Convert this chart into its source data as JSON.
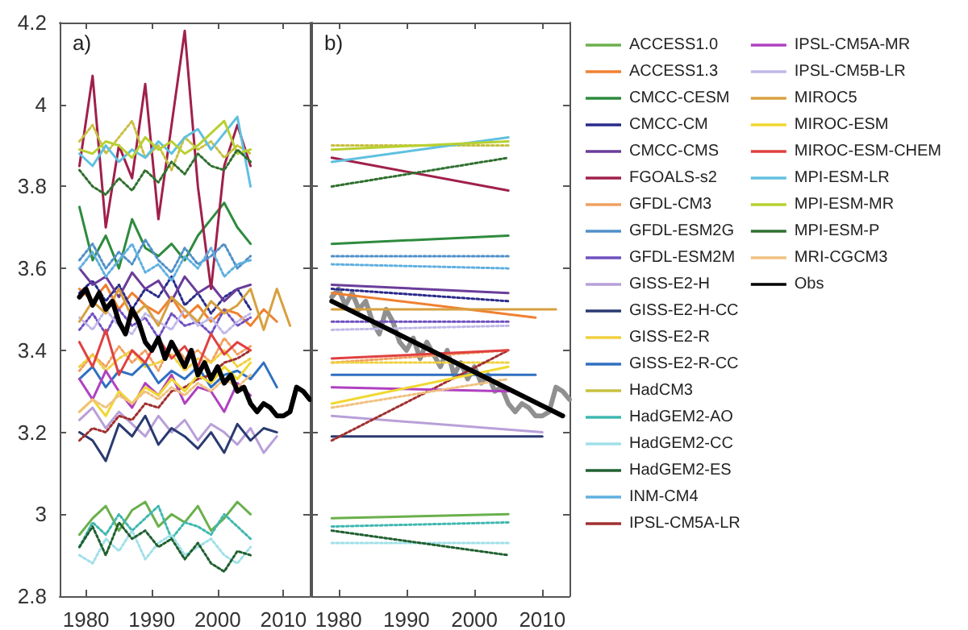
{
  "chart_data": [
    {
      "type": "line",
      "annotations": [
        "a)"
      ],
      "xlim": [
        1976,
        2014
      ],
      "xticks": [
        1980,
        1990,
        2000,
        2010
      ],
      "ylim": [
        2.8,
        4.2
      ],
      "yticks": [
        2.8,
        3,
        3.2,
        3.4,
        3.6,
        3.8,
        4,
        4.2
      ],
      "legend": false,
      "x": [
        1979,
        1981,
        1983,
        1985,
        1987,
        1989,
        1991,
        1993,
        1995,
        1997,
        1999,
        2001,
        2003,
        2005
      ],
      "series": [
        {
          "color": "#6ab04c",
          "line_style": "solid",
          "values": [
            2.95,
            2.99,
            3.02,
            2.96,
            3.01,
            3.03,
            2.97,
            3.0,
            2.98,
            3.02,
            2.96,
            2.99,
            3.03,
            3.0
          ]
        },
        {
          "color": "#f08030",
          "line_style": "solid",
          "x": [
            1979,
            1981,
            1983,
            1985,
            1987,
            1989,
            1991,
            1993,
            1995,
            1997,
            1999,
            2001,
            2003,
            2005,
            2007,
            2009
          ],
          "values": [
            3.55,
            3.52,
            3.56,
            3.5,
            3.54,
            3.51,
            3.49,
            3.53,
            3.48,
            3.51,
            3.47,
            3.5,
            3.49,
            3.46,
            3.5,
            3.47
          ]
        },
        {
          "color": "#2e8b3e",
          "line_style": "solid",
          "values": [
            3.75,
            3.62,
            3.68,
            3.6,
            3.72,
            3.65,
            3.63,
            3.66,
            3.62,
            3.68,
            3.72,
            3.76,
            3.7,
            3.66
          ]
        },
        {
          "color": "#2a2a8a",
          "line_style": "dotted",
          "values": [
            3.54,
            3.57,
            3.52,
            3.56,
            3.5,
            3.55,
            3.53,
            3.58,
            3.51,
            3.54,
            3.49,
            3.53,
            3.55,
            3.5
          ]
        },
        {
          "color": "#6a3d9a",
          "line_style": "solid",
          "values": [
            3.6,
            3.56,
            3.58,
            3.53,
            3.59,
            3.55,
            3.57,
            3.52,
            3.58,
            3.54,
            3.56,
            3.52,
            3.55,
            3.56
          ]
        },
        {
          "color": "#a0204a",
          "line_style": "solid",
          "values": [
            3.85,
            4.07,
            3.7,
            3.9,
            3.82,
            4.05,
            3.72,
            3.95,
            4.18,
            3.8,
            3.55,
            3.85,
            3.95,
            3.85
          ]
        },
        {
          "color": "#f0a060",
          "line_style": "dotted",
          "values": [
            3.35,
            3.39,
            3.36,
            3.41,
            3.37,
            3.4,
            3.35,
            3.42,
            3.38,
            3.4,
            3.37,
            3.43,
            3.39,
            3.41
          ]
        },
        {
          "color": "#5090c8",
          "line_style": "dotted",
          "values": [
            3.62,
            3.66,
            3.6,
            3.64,
            3.61,
            3.67,
            3.62,
            3.59,
            3.65,
            3.61,
            3.63,
            3.66,
            3.6,
            3.63
          ]
        },
        {
          "color": "#7050c0",
          "line_style": "dotted",
          "values": [
            3.45,
            3.49,
            3.44,
            3.5,
            3.46,
            3.48,
            3.43,
            3.49,
            3.46,
            3.47,
            3.44,
            3.5,
            3.46,
            3.48
          ]
        },
        {
          "color": "#b8a0d8",
          "line_style": "solid",
          "x": [
            1979,
            1981,
            1983,
            1985,
            1987,
            1989,
            1991,
            1993,
            1995,
            1997,
            1999,
            2001,
            2003,
            2005,
            2007,
            2009
          ],
          "values": [
            3.23,
            3.26,
            3.21,
            3.25,
            3.22,
            3.19,
            3.24,
            3.2,
            3.23,
            3.18,
            3.22,
            3.2,
            3.17,
            3.21,
            3.15,
            3.19
          ]
        },
        {
          "color": "#2a3a70",
          "line_style": "solid",
          "x": [
            1979,
            1981,
            1983,
            1985,
            1987,
            1989,
            1991,
            1993,
            1995,
            1997,
            1999,
            2001,
            2003,
            2005,
            2007,
            2009
          ],
          "values": [
            3.2,
            3.18,
            3.13,
            3.22,
            3.19,
            3.24,
            3.17,
            3.21,
            3.19,
            3.16,
            3.2,
            3.15,
            3.22,
            3.18,
            3.21,
            3.2
          ]
        },
        {
          "color": "#f0d040",
          "line_style": "dotted",
          "values": [
            3.36,
            3.39,
            3.35,
            3.38,
            3.4,
            3.36,
            3.37,
            3.39,
            3.35,
            3.38,
            3.37,
            3.4,
            3.36,
            3.38
          ]
        },
        {
          "color": "#3070c0",
          "line_style": "solid",
          "x": [
            1979,
            1981,
            1983,
            1985,
            1987,
            1989,
            1991,
            1993,
            1995,
            1997,
            1999,
            2001,
            2003,
            2005,
            2007,
            2009
          ],
          "values": [
            3.33,
            3.36,
            3.31,
            3.35,
            3.34,
            3.37,
            3.32,
            3.35,
            3.33,
            3.36,
            3.31,
            3.34,
            3.35,
            3.33,
            3.37,
            3.31
          ]
        },
        {
          "color": "#c8c040",
          "line_style": "dotted",
          "values": [
            3.91,
            3.95,
            3.88,
            3.92,
            3.96,
            3.87,
            3.9,
            3.84,
            3.92,
            3.89,
            3.91,
            3.87,
            3.9,
            3.88
          ]
        },
        {
          "color": "#40b8b0",
          "line_style": "dotted",
          "values": [
            2.92,
            2.98,
            2.95,
            3.0,
            2.96,
            2.99,
            3.02,
            2.94,
            2.98,
            2.97,
            2.95,
            3.0,
            2.97,
            2.94
          ]
        },
        {
          "color": "#a0e0e8",
          "line_style": "dotted",
          "values": [
            2.9,
            2.88,
            2.94,
            2.91,
            2.96,
            2.89,
            2.93,
            2.95,
            2.9,
            2.92,
            2.94,
            2.9,
            2.88,
            2.92
          ]
        },
        {
          "color": "#206030",
          "line_style": "dotted",
          "values": [
            2.92,
            2.97,
            2.9,
            2.98,
            2.94,
            2.96,
            2.92,
            2.94,
            2.89,
            2.93,
            2.88,
            2.86,
            2.91,
            2.9
          ]
        },
        {
          "color": "#60b0e0",
          "line_style": "dotted",
          "values": [
            3.6,
            3.64,
            3.58,
            3.62,
            3.66,
            3.59,
            3.61,
            3.57,
            3.63,
            3.6,
            3.65,
            3.58,
            3.61,
            3.62
          ]
        },
        {
          "color": "#a03030",
          "line_style": "dotted",
          "values": [
            3.18,
            3.21,
            3.2,
            3.24,
            3.23,
            3.27,
            3.26,
            3.3,
            3.31,
            3.33,
            3.34,
            3.37,
            3.38,
            3.4
          ]
        },
        {
          "color": "#b040c0",
          "line_style": "solid",
          "values": [
            3.33,
            3.28,
            3.35,
            3.3,
            3.26,
            3.32,
            3.29,
            3.34,
            3.27,
            3.31,
            3.3,
            3.25,
            3.32,
            3.29
          ]
        },
        {
          "color": "#c0b8e8",
          "line_style": "dotted",
          "values": [
            3.48,
            3.45,
            3.5,
            3.46,
            3.44,
            3.49,
            3.47,
            3.45,
            3.5,
            3.46,
            3.48,
            3.44,
            3.47,
            3.49
          ]
        },
        {
          "color": "#d8a040",
          "line_style": "solid",
          "x": [
            1979,
            1981,
            1983,
            1985,
            1987,
            1989,
            1991,
            1993,
            1995,
            1997,
            1999,
            2001,
            2003,
            2005,
            2007,
            2009,
            2011
          ],
          "values": [
            3.47,
            3.52,
            3.49,
            3.55,
            3.48,
            3.51,
            3.46,
            3.53,
            3.5,
            3.47,
            3.52,
            3.49,
            3.51,
            3.55,
            3.45,
            3.55,
            3.46
          ]
        },
        {
          "color": "#f0d830",
          "line_style": "solid",
          "values": [
            3.25,
            3.28,
            3.24,
            3.3,
            3.27,
            3.31,
            3.29,
            3.33,
            3.3,
            3.34,
            3.32,
            3.36,
            3.33,
            3.37
          ]
        },
        {
          "color": "#e04040",
          "line_style": "solid",
          "values": [
            3.42,
            3.36,
            3.45,
            3.34,
            3.4,
            3.37,
            3.43,
            3.38,
            3.41,
            3.36,
            3.44,
            3.39,
            3.42,
            3.4
          ]
        },
        {
          "color": "#60c0e0",
          "line_style": "solid",
          "values": [
            3.88,
            3.85,
            3.9,
            3.86,
            3.89,
            3.87,
            3.91,
            3.88,
            3.92,
            3.94,
            3.89,
            3.93,
            3.97,
            3.8
          ]
        },
        {
          "color": "#b8d030",
          "line_style": "solid",
          "values": [
            3.89,
            3.88,
            3.91,
            3.9,
            3.87,
            3.92,
            3.89,
            3.91,
            3.88,
            3.9,
            3.93,
            3.96,
            3.88,
            3.89
          ]
        },
        {
          "color": "#307030",
          "line_style": "dotted",
          "values": [
            3.84,
            3.8,
            3.78,
            3.82,
            3.79,
            3.84,
            3.81,
            3.86,
            3.83,
            3.88,
            3.85,
            3.84,
            3.89,
            3.86
          ]
        },
        {
          "color": "#f0c080",
          "line_style": "dotted",
          "values": [
            3.25,
            3.28,
            3.26,
            3.29,
            3.27,
            3.3,
            3.28,
            3.31,
            3.29,
            3.32,
            3.3,
            3.33,
            3.31,
            3.34
          ]
        },
        {
          "color": "#000000",
          "line_style": "solid",
          "x": [
            1979,
            1980,
            1981,
            1982,
            1983,
            1984,
            1985,
            1986,
            1987,
            1988,
            1989,
            1990,
            1991,
            1992,
            1993,
            1994,
            1995,
            1996,
            1997,
            1998,
            1999,
            2000,
            2001,
            2002,
            2003,
            2004,
            2005,
            2006,
            2007,
            2008,
            2009,
            2010,
            2011,
            2012,
            2013,
            2014
          ],
          "values": [
            3.53,
            3.55,
            3.51,
            3.54,
            3.5,
            3.52,
            3.47,
            3.44,
            3.5,
            3.47,
            3.42,
            3.4,
            3.43,
            3.38,
            3.42,
            3.39,
            3.36,
            3.4,
            3.34,
            3.37,
            3.33,
            3.36,
            3.32,
            3.34,
            3.3,
            3.31,
            3.27,
            3.25,
            3.27,
            3.26,
            3.24,
            3.24,
            3.25,
            3.31,
            3.3,
            3.28
          ]
        }
      ]
    },
    {
      "type": "line",
      "annotations": [
        "b)"
      ],
      "xlim": [
        1976,
        2014
      ],
      "xticks": [
        1980,
        1990,
        2000,
        2010
      ],
      "ylim": [
        2.8,
        4.2
      ],
      "yticks": [
        2.8,
        3,
        3.2,
        3.4,
        3.6,
        3.8,
        4,
        4.2
      ],
      "tick_labels": "x",
      "legend": "right",
      "x": [
        1979,
        2005
      ],
      "series": [
        {
          "color": "#909090",
          "line_style": "solid",
          "x": [
            1979,
            1980,
            1981,
            1982,
            1983,
            1984,
            1985,
            1986,
            1987,
            1988,
            1989,
            1990,
            1991,
            1992,
            1993,
            1994,
            1995,
            1996,
            1997,
            1998,
            1999,
            2000,
            2001,
            2002,
            2003,
            2004,
            2005,
            2006,
            2007,
            2008,
            2009,
            2010,
            2011,
            2012,
            2013,
            2014
          ],
          "values": [
            3.53,
            3.55,
            3.51,
            3.54,
            3.5,
            3.52,
            3.47,
            3.44,
            3.5,
            3.47,
            3.42,
            3.4,
            3.43,
            3.38,
            3.42,
            3.39,
            3.36,
            3.4,
            3.34,
            3.37,
            3.33,
            3.36,
            3.32,
            3.34,
            3.3,
            3.31,
            3.27,
            3.25,
            3.27,
            3.26,
            3.24,
            3.24,
            3.25,
            3.31,
            3.3,
            3.28
          ]
        },
        {
          "name": "ACCESS1.0",
          "color": "#6ab04c",
          "line_style": "solid",
          "values": [
            2.99,
            3.0
          ]
        },
        {
          "name": "ACCESS1.3",
          "color": "#f08030",
          "line_style": "solid",
          "x": [
            1979,
            2009
          ],
          "values": [
            3.54,
            3.48
          ]
        },
        {
          "name": "CMCC-CESM",
          "color": "#2e8b3e",
          "line_style": "solid",
          "values": [
            3.66,
            3.68
          ]
        },
        {
          "name": "CMCC-CM",
          "color": "#2a2a8a",
          "line_style": "dotted",
          "values": [
            3.55,
            3.52
          ]
        },
        {
          "name": "CMCC-CMS",
          "color": "#6a3d9a",
          "line_style": "solid",
          "values": [
            3.56,
            3.54
          ]
        },
        {
          "name": "FGOALS-s2",
          "color": "#a0204a",
          "line_style": "solid",
          "values": [
            3.87,
            3.79
          ]
        },
        {
          "name": "GFDL-CM3",
          "color": "#f0a060",
          "line_style": "dotted",
          "values": [
            3.37,
            3.4
          ]
        },
        {
          "name": "GFDL-ESM2G",
          "color": "#5090c8",
          "line_style": "dotted",
          "values": [
            3.63,
            3.63
          ]
        },
        {
          "name": "GFDL-ESM2M",
          "color": "#7050c0",
          "line_style": "dotted",
          "values": [
            3.47,
            3.47
          ]
        },
        {
          "name": "GISS-E2-H",
          "color": "#b8a0d8",
          "line_style": "solid",
          "x": [
            1979,
            2010
          ],
          "values": [
            3.24,
            3.2
          ]
        },
        {
          "name": "GISS-E2-H-CC",
          "color": "#2a3a70",
          "line_style": "solid",
          "x": [
            1979,
            2010
          ],
          "values": [
            3.19,
            3.19
          ]
        },
        {
          "name": "GISS-E2-R",
          "color": "#f0d040",
          "line_style": "dotted",
          "values": [
            3.37,
            3.37
          ]
        },
        {
          "name": "GISS-E2-R-CC",
          "color": "#3070c0",
          "line_style": "solid",
          "x": [
            1979,
            2009
          ],
          "values": [
            3.34,
            3.34
          ]
        },
        {
          "name": "HadCM3",
          "color": "#c8c040",
          "line_style": "dotted",
          "values": [
            3.9,
            3.9
          ]
        },
        {
          "name": "HadGEM2-AO",
          "color": "#40b8b0",
          "line_style": "dotted",
          "values": [
            2.97,
            2.98
          ]
        },
        {
          "name": "HadGEM2-CC",
          "color": "#a0e0e8",
          "line_style": "dotted",
          "values": [
            2.93,
            2.93
          ]
        },
        {
          "name": "HadGEM2-ES",
          "color": "#206030",
          "line_style": "dotted",
          "values": [
            2.96,
            2.9
          ]
        },
        {
          "name": "INM-CM4",
          "color": "#60b0e0",
          "line_style": "dotted",
          "values": [
            3.61,
            3.6
          ]
        },
        {
          "name": "IPSL-CM5A-LR",
          "color": "#a03030",
          "line_style": "dotted",
          "values": [
            3.18,
            3.4
          ]
        },
        {
          "name": "IPSL-CM5A-MR",
          "color": "#b040c0",
          "line_style": "solid",
          "values": [
            3.31,
            3.3
          ]
        },
        {
          "name": "IPSL-CM5B-LR",
          "color": "#c0b8e8",
          "line_style": "dotted",
          "values": [
            3.45,
            3.46
          ]
        },
        {
          "name": "MIROC5",
          "color": "#d8a040",
          "line_style": "solid",
          "x": [
            1979,
            2012
          ],
          "values": [
            3.5,
            3.5
          ]
        },
        {
          "name": "MIROC-ESM",
          "color": "#f0d830",
          "line_style": "solid",
          "values": [
            3.27,
            3.36
          ]
        },
        {
          "name": "MIROC-ESM-CHEM",
          "color": "#e04040",
          "line_style": "solid",
          "values": [
            3.38,
            3.4
          ]
        },
        {
          "name": "MPI-ESM-LR",
          "color": "#60c0e0",
          "line_style": "solid",
          "values": [
            3.86,
            3.92
          ]
        },
        {
          "name": "MPI-ESM-MR",
          "color": "#b8d030",
          "line_style": "solid",
          "values": [
            3.89,
            3.91
          ]
        },
        {
          "name": "MPI-ESM-P",
          "color": "#307030",
          "line_style": "dotted",
          "values": [
            3.8,
            3.87
          ]
        },
        {
          "name": "MRI-CGCM3",
          "color": "#f0c080",
          "line_style": "dotted",
          "values": [
            3.26,
            3.33
          ]
        },
        {
          "name": "Obs",
          "color": "#000000",
          "line_style": "solid",
          "x": [
            1979,
            2013
          ],
          "values": [
            3.52,
            3.24
          ]
        }
      ]
    }
  ]
}
